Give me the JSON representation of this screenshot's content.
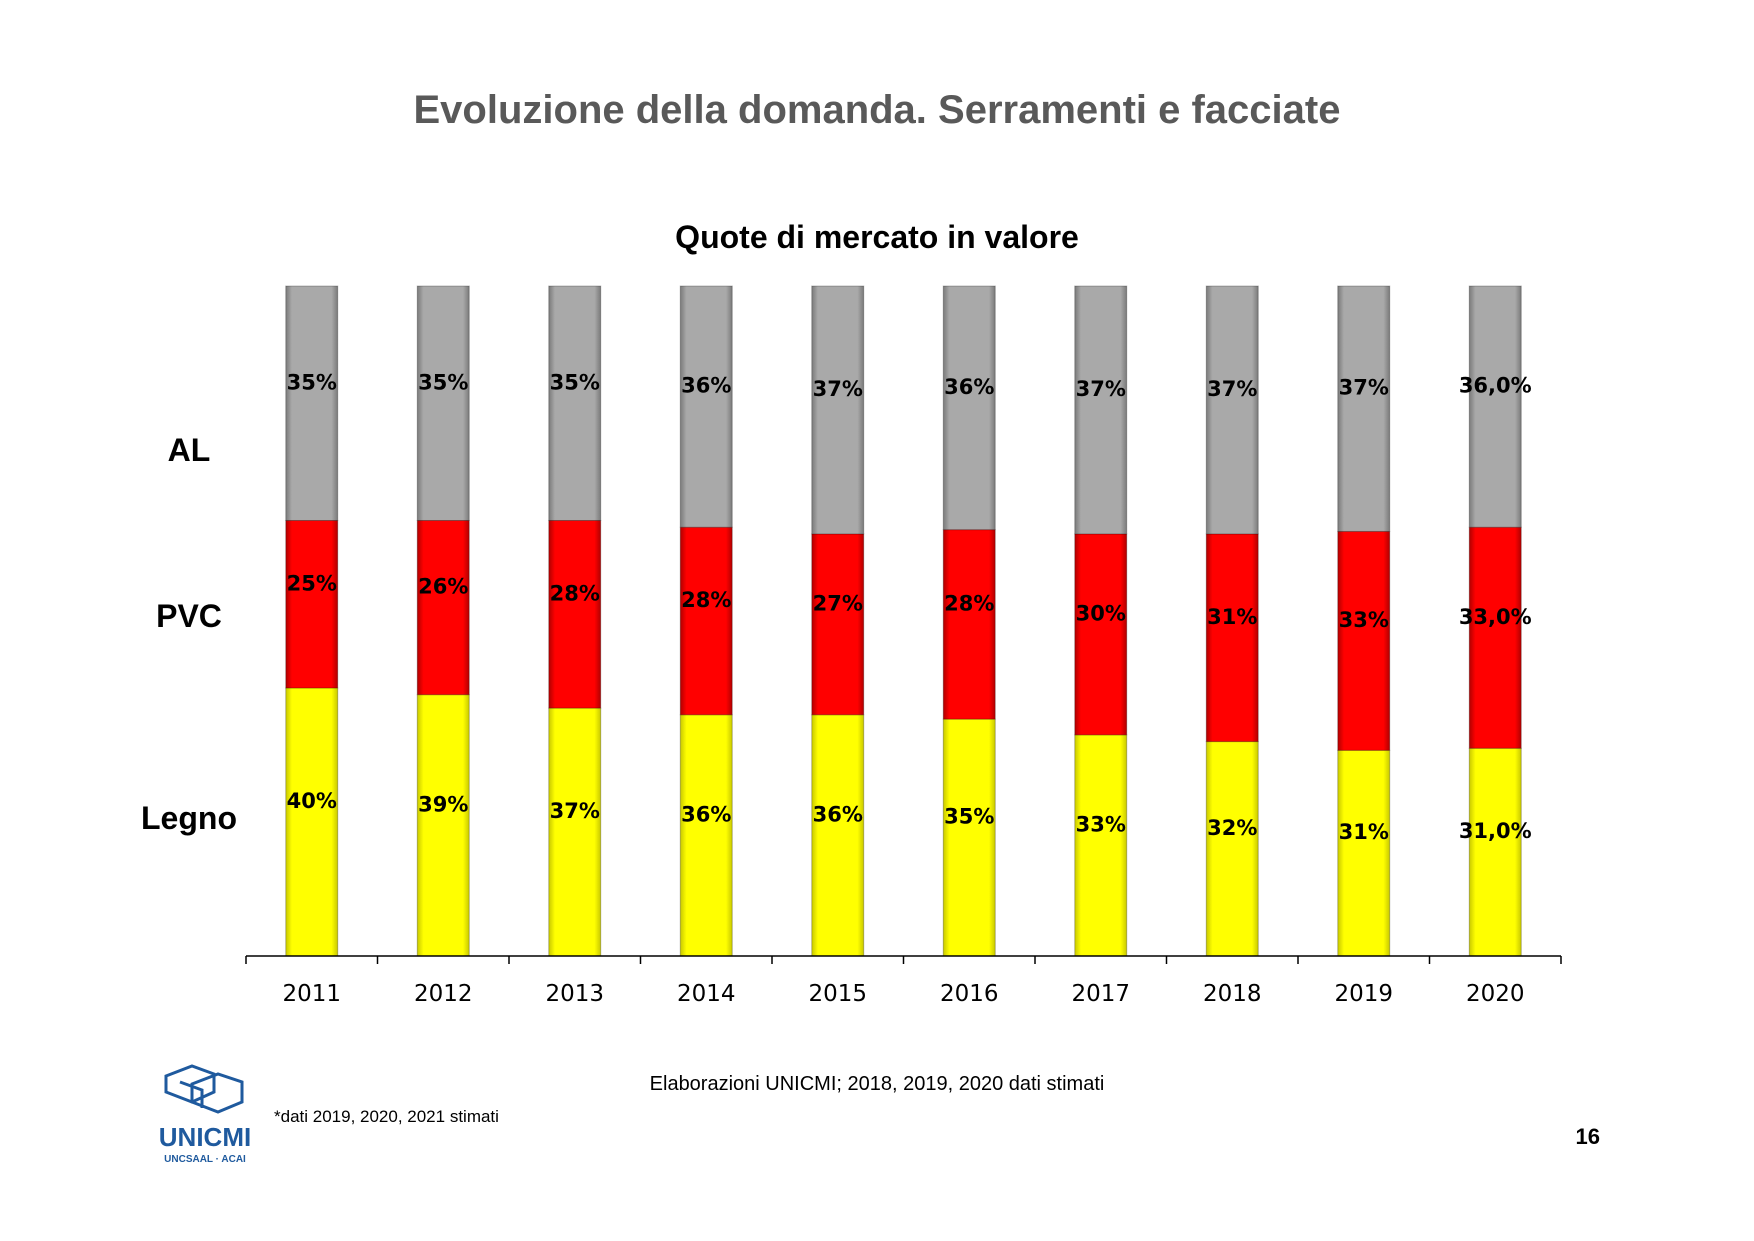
{
  "page_title": "Evoluzione della domanda. Serramenti e facciate",
  "chart_data": {
    "type": "bar",
    "stacked": true,
    "title": "Quote di mercato in valore",
    "categories": [
      "2011",
      "2012",
      "2013",
      "2014",
      "2015",
      "2016",
      "2017",
      "2018",
      "2019",
      "2020"
    ],
    "series": [
      {
        "name": "Legno",
        "color": "#ffff00",
        "values": [
          40,
          39,
          37,
          36,
          36,
          35,
          33,
          32,
          31,
          31.0
        ],
        "labels": [
          "40%",
          "39%",
          "37%",
          "36%",
          "36%",
          "35%",
          "33%",
          "32%",
          "31%",
          "31,0%"
        ]
      },
      {
        "name": "PVC",
        "color": "#ff0000",
        "values": [
          25,
          26,
          28,
          28,
          27,
          28,
          30,
          31,
          33,
          33.0
        ],
        "labels": [
          "25%",
          "26%",
          "28%",
          "28%",
          "27%",
          "28%",
          "30%",
          "31%",
          "33%",
          "33,0%"
        ]
      },
      {
        "name": "AL",
        "color": "#a6a6a6",
        "values": [
          35,
          35,
          35,
          36,
          37,
          36,
          37,
          37,
          37,
          36.0
        ],
        "labels": [
          "35%",
          "35%",
          "35%",
          "36%",
          "37%",
          "36%",
          "37%",
          "37%",
          "37%",
          "36,0%"
        ]
      }
    ],
    "ylim": [
      0,
      100
    ],
    "grid": false,
    "legend": "left"
  },
  "source_note": "Elaborazioni UNICMI; 2018, 2019, 2020 dati stimati",
  "footnote": "*dati 2019, 2020, 2021 stimati",
  "page_number": "16",
  "logo": {
    "name": "UNICMI",
    "subtitle": "UNCSAAL · ACAI"
  }
}
